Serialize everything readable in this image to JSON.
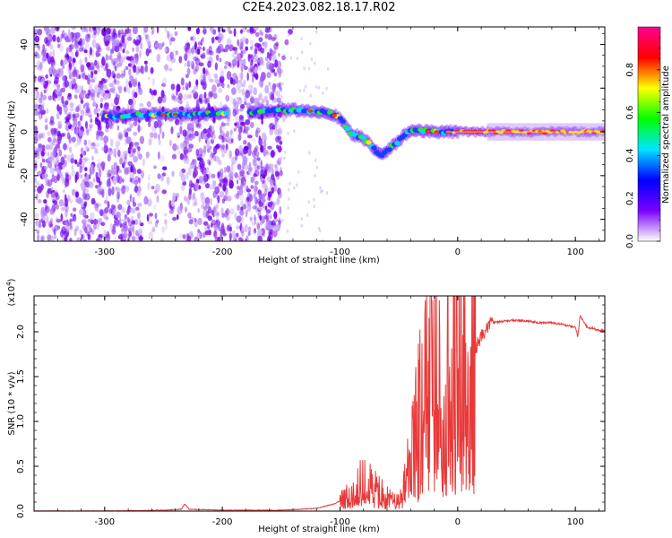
{
  "title": "C2E4.2023.082.18.17.R02",
  "chart_data": [
    {
      "type": "heatmap",
      "title": "C2E4.2023.082.18.17.R02",
      "xlabel": "Height of straight line (km)",
      "ylabel": "Frequency (Hz)",
      "xlim": [
        -360,
        125
      ],
      "ylim": [
        -50,
        48
      ],
      "xticks": [
        -300,
        -200,
        -100,
        0,
        100
      ],
      "yticks": [
        -40,
        -20,
        0,
        20,
        40
      ],
      "colorbar": {
        "label": "Normalized spectral amplitude",
        "range": [
          0,
          1
        ],
        "ticks": [
          "0.0",
          "0.2",
          "0.4",
          "0.6",
          "0.8"
        ],
        "colormap": [
          "#ffffff",
          "#7a00ff",
          "#0000ff",
          "#00e5ff",
          "#00ff00",
          "#ffff00",
          "#ff0000",
          "#ff0090"
        ]
      },
      "ridge": [
        {
          "x": -300,
          "y": 7
        },
        {
          "x": -260,
          "y": 8
        },
        {
          "x": -220,
          "y": 8
        },
        {
          "x": -180,
          "y": 9
        },
        {
          "x": -140,
          "y": 10
        },
        {
          "x": -110,
          "y": 9
        },
        {
          "x": -100,
          "y": 6
        },
        {
          "x": -90,
          "y": -1
        },
        {
          "x": -80,
          "y": -3
        },
        {
          "x": -65,
          "y": -11
        },
        {
          "x": -50,
          "y": -4
        },
        {
          "x": -40,
          "y": 1
        },
        {
          "x": -20,
          "y": 0
        },
        {
          "x": 0,
          "y": 0
        },
        {
          "x": 60,
          "y": 0
        },
        {
          "x": 125,
          "y": 0
        }
      ]
    },
    {
      "type": "line",
      "xlabel": "Height of straight line (km)",
      "ylabel": "SNR (10 * v/v)",
      "y_multiplier": "(x10^4)",
      "xlim": [
        -360,
        125
      ],
      "ylim": [
        0,
        2.4
      ],
      "xticks": [
        -300,
        -200,
        -100,
        0,
        100
      ],
      "yticks": [
        "0.0",
        "0.5",
        "1.0",
        "1.5",
        "2.0"
      ],
      "color": "#e83a3a",
      "series": [
        {
          "x": [
            -360,
            -300,
            -250,
            -235,
            -232,
            -228,
            -200,
            -150,
            -120,
            -105,
            -95,
            -85,
            -80,
            -70,
            -60,
            -50,
            -45,
            -40,
            -35,
            -30,
            -25,
            -22,
            -20,
            -15,
            -10,
            -5,
            0,
            5,
            10,
            15,
            20,
            25,
            30,
            40,
            50,
            60,
            70,
            80,
            90,
            100,
            102,
            104,
            110,
            120,
            125
          ],
          "y": [
            0.0,
            0.0,
            0.01,
            0.02,
            0.08,
            0.02,
            0.01,
            0.01,
            0.03,
            0.08,
            0.15,
            0.25,
            0.4,
            0.25,
            0.15,
            0.12,
            0.3,
            0.6,
            0.9,
            1.2,
            1.6,
            2.4,
            1.5,
            1.3,
            1.4,
            1.5,
            1.6,
            1.7,
            1.4,
            1.8,
            1.95,
            2.05,
            2.1,
            2.12,
            2.13,
            2.12,
            2.1,
            2.1,
            2.08,
            2.05,
            1.95,
            2.18,
            2.05,
            2.02,
            2.0
          ]
        }
      ]
    }
  ]
}
